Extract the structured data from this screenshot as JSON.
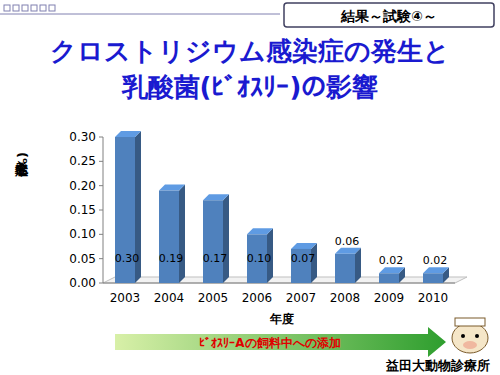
{
  "chart_data": {
    "type": "bar",
    "title": "クロストリジウム感染症の発生と",
    "subtitle": "乳酸菌(ﾋﾞｵｽﾘｰ)の影響",
    "x_label": "年度",
    "y_label": "発症率(%)",
    "categories": [
      "2003",
      "2004",
      "2005",
      "2006",
      "2007",
      "2008",
      "2009",
      "2010"
    ],
    "values": [
      0.3,
      0.19,
      0.17,
      0.1,
      0.07,
      0.06,
      0.02,
      0.02
    ],
    "value_labels": [
      "0.30",
      "0.19",
      "0.17",
      "0.10",
      "0.07",
      "0.06",
      "0.02",
      "0.02"
    ],
    "color": "#4f81bd",
    "ylim": [
      0,
      0.3
    ],
    "yticks": [
      {
        "value": 0,
        "label": "0.00"
      },
      {
        "value": 0.05,
        "label": "0.05"
      },
      {
        "value": 0.1,
        "label": "0.10"
      },
      {
        "value": 0.15,
        "label": "0.15"
      },
      {
        "value": 0.2,
        "label": "0.20"
      },
      {
        "value": 0.25,
        "label": "0.25"
      },
      {
        "value": 0.3,
        "label": "0.30"
      }
    ],
    "grid": false,
    "data_labels": true,
    "annotations": [
      "結果～試験④～",
      "ﾋﾞｵｽﾘｰAの飼料中への添加",
      "益田大動物診療所"
    ]
  }
}
